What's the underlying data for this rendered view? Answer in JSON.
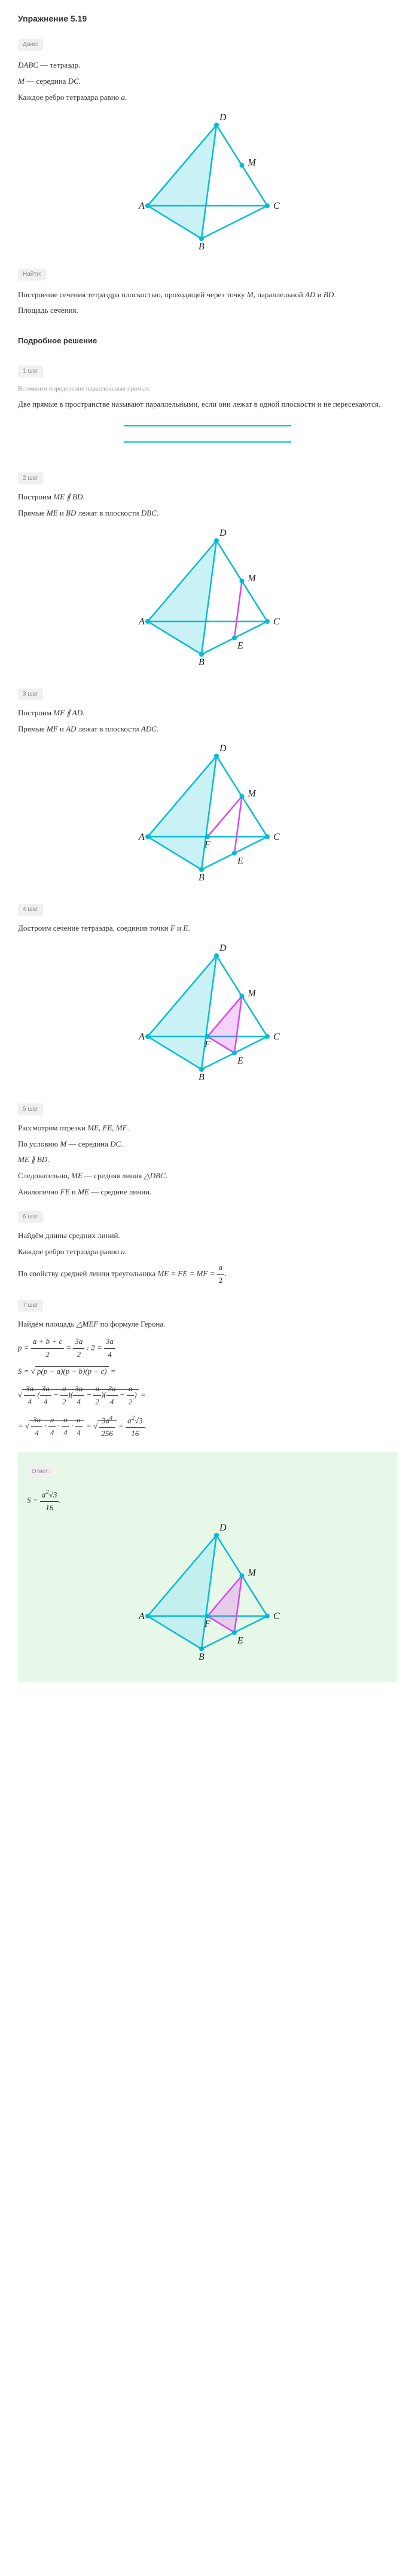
{
  "title": "Упражнение 5.19",
  "given_label": "Дано:",
  "given": {
    "l1_a": "DABC",
    "l1_b": " — тетраэдр.",
    "l2_a": "M",
    "l2_b": " — середина ",
    "l2_c": "DC",
    "l2_d": ".",
    "l3_a": "Каждое ребро тетраэдра равно ",
    "l3_b": "a",
    "l3_c": "."
  },
  "find_label": "Найти:",
  "find": {
    "l1_a": "Построение сечения тетраэдра плоскостью, проходящей через точку ",
    "l1_b": "M",
    "l1_c": ", параллельной ",
    "l1_d": "AD",
    "l1_e": " и ",
    "l1_f": "BD",
    "l1_g": ".",
    "l2": "Площадь сечения."
  },
  "solution_label": "Подробное решение",
  "steps": {
    "s1_tag": "1 шаг",
    "s1_recall": "Вспомним определение параллельных прямых.",
    "s1_text": "Две прямые в пространстве называют параллельными, если они лежат в одной плоскости и не пересекаются.",
    "s2_tag": "2 шаг",
    "s2_a": "Построим ",
    "s2_b": "ME ∥ BD",
    "s2_c": ".",
    "s2_d": "Прямые ",
    "s2_e": "ME",
    "s2_f": " и ",
    "s2_g": "BD",
    "s2_h": " лежат в плоскости ",
    "s2_i": "DBC",
    "s2_j": ".",
    "s3_tag": "3 шаг",
    "s3_a": "Построим ",
    "s3_b": "MF ∥ AD",
    "s3_c": ".",
    "s3_d": "Прямые ",
    "s3_e": "MF",
    "s3_f": " и ",
    "s3_g": "AD",
    "s3_h": " лежат в плоскости ",
    "s3_i": "ADC",
    "s3_j": ".",
    "s4_tag": "4 шаг",
    "s4_a": "Достроим сечение тетраэдра, соединив точки ",
    "s4_b": "F",
    "s4_c": " и ",
    "s4_d": "E",
    "s4_e": ".",
    "s5_tag": "5 шаг",
    "s5_a": "Рассмотрим отрезки ",
    "s5_b": "ME, FE, MF",
    "s5_c": ".",
    "s5_d": "По условию ",
    "s5_e": "M",
    "s5_f": " — середина ",
    "s5_g": "DC",
    "s5_h": ".",
    "s5_i": "ME ∥ BD",
    "s5_j": ".",
    "s5_k": "Следовательно, ",
    "s5_l": "ME",
    "s5_m": " — средняя линия ",
    "s5_n": "△DBC",
    "s5_o": ".",
    "s5_p": "Аналогично ",
    "s5_q": "FE",
    "s5_r": " и ",
    "s5_s": "ME",
    "s5_t": " — средние линии.",
    "s6_tag": "6 шаг",
    "s6_a": "Найдём длины средних линий.",
    "s6_b": "Каждое ребро тетраэдра равно ",
    "s6_c": "a",
    "s6_d": ".",
    "s6_e": "По свойству средней линии треугольника ",
    "s6_f": "ME = FE = MF = ",
    "s6_g_n": "a",
    "s6_g_d": "2",
    "s6_h": ".",
    "s7_tag": "7 шаг",
    "s7_a": "Найдём площадь ",
    "s7_b": "△MEF",
    "s7_c": " по формуле Герона."
  },
  "answer_label": "Ответ:",
  "colors": {
    "tetra_stroke": "#00bcd4",
    "tetra_fill": "#b3ecf2",
    "vertex": "#00bcd4",
    "section": "#d946ef",
    "label": "#1a1a1a"
  },
  "labels": {
    "A": "A",
    "B": "B",
    "C": "C",
    "D": "D",
    "M": "M",
    "E": "E",
    "F": "F"
  }
}
